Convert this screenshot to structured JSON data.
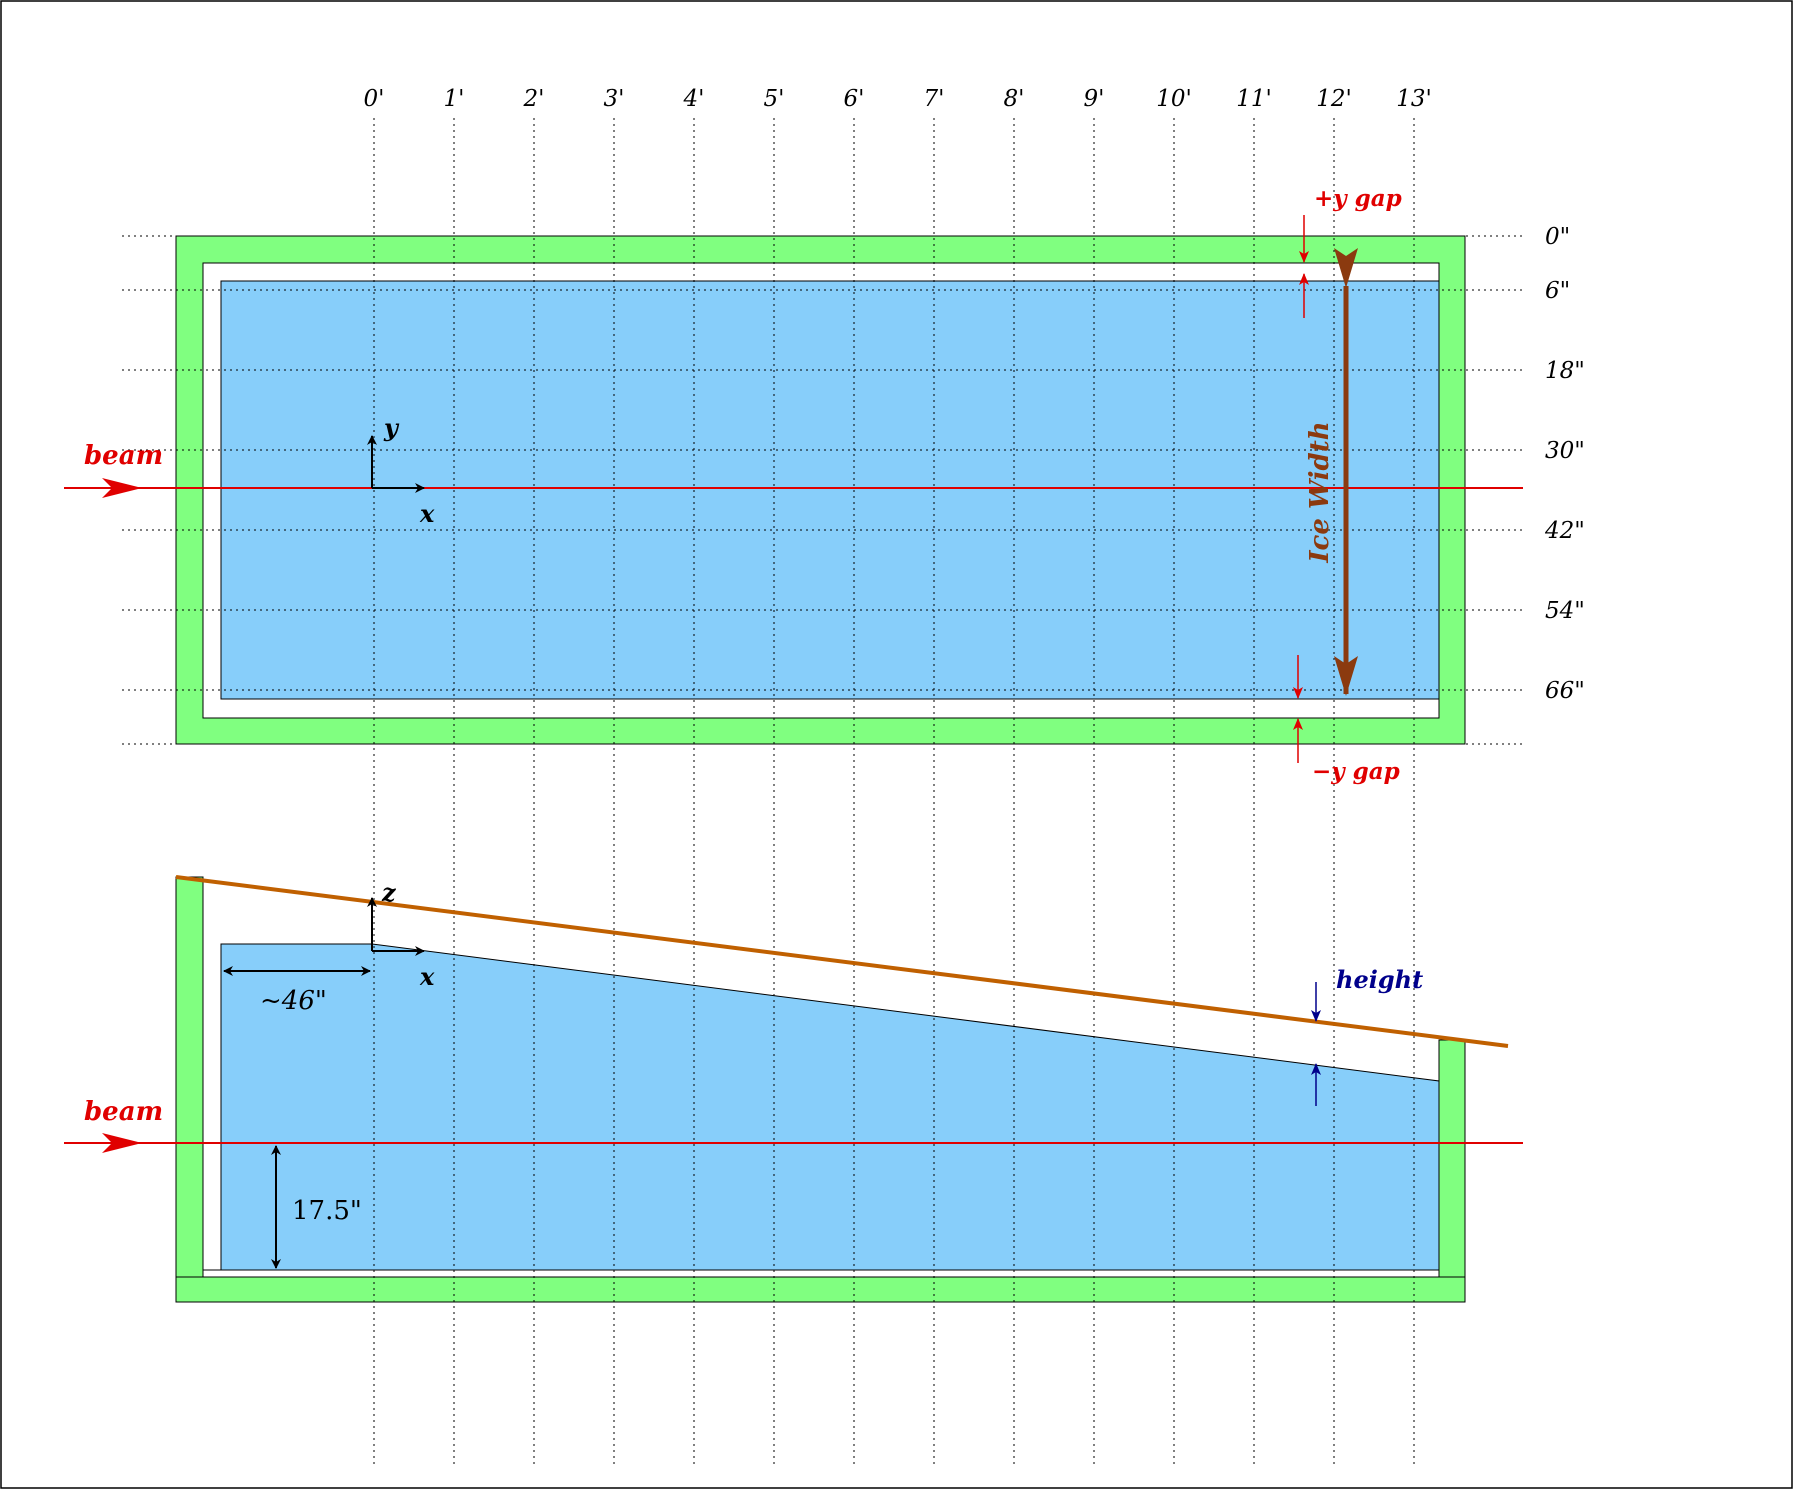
{
  "colors": {
    "wall_green": "#80ff80",
    "ice_blue": "#87cefa",
    "beam_red": "#e00000",
    "axis_black": "#000000",
    "slope_orange": "#c06000",
    "ice_width_brown": "#8b3a0f",
    "height_blue": "#00008b",
    "grid_gray": "#000000"
  },
  "foot_labels": [
    "0'",
    "1'",
    "2'",
    "3'",
    "4'",
    "5'",
    "6'",
    "7'",
    "8'",
    "9'",
    "10'",
    "11'",
    "12'",
    "13'"
  ],
  "inch_labels": [
    "0\"",
    "6\"",
    "18\"",
    "30\"",
    "42\"",
    "54\"",
    "66\""
  ],
  "top_view": {
    "beam_label": "beam",
    "axis_x": "x",
    "axis_y": "y",
    "ice_width_label": "Ice Width",
    "plus_gap_label": "+y gap",
    "minus_gap_label": "−y gap"
  },
  "side_view": {
    "beam_label": "beam",
    "axis_x": "x",
    "axis_z": "z",
    "height_label": "height",
    "offset_label": "~46\"",
    "beam_height_label": "17.5\""
  }
}
